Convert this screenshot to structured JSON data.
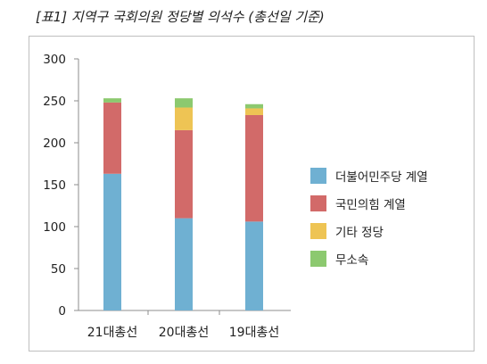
{
  "title": "[표1] 지역구 국회의원 정당별 의석수 (총선일 기준)",
  "chart_data": {
    "type": "bar",
    "stacked": true,
    "categories": [
      "21대총선",
      "20대총선",
      "19대총선"
    ],
    "series": [
      {
        "name": "더불어민주당 계열",
        "color": "#6fb0d2",
        "values": [
          163,
          110,
          106
        ]
      },
      {
        "name": "국민의힘 계열",
        "color": "#d26a69",
        "values": [
          85,
          105,
          127
        ]
      },
      {
        "name": "기타 정당",
        "color": "#eec454",
        "values": [
          0,
          27,
          8
        ]
      },
      {
        "name": "무소속",
        "color": "#8cc96f",
        "values": [
          5,
          11,
          5
        ]
      }
    ],
    "ylim": [
      0,
      300
    ],
    "yticks": [
      0,
      50,
      100,
      150,
      200,
      250,
      300
    ],
    "legend_position": "right",
    "grid": false
  }
}
